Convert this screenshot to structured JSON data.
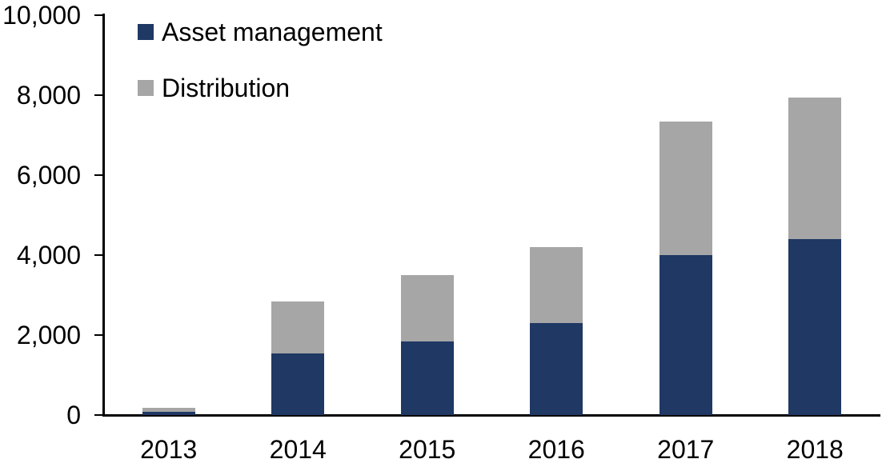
{
  "chart_data": {
    "type": "bar",
    "stacked": true,
    "title": "",
    "xlabel": "",
    "ylabel": "",
    "categories": [
      "2013",
      "2014",
      "2015",
      "2016",
      "2017",
      "2018"
    ],
    "series": [
      {
        "name": "Asset management",
        "color": "#1f3864",
        "values": [
          80,
          1550,
          1850,
          2300,
          4000,
          4400
        ]
      },
      {
        "name": "Distribution",
        "color": "#a6a6a6",
        "values": [
          100,
          1300,
          1650,
          1900,
          3350,
          3550
        ]
      }
    ],
    "totals": [
      180,
      2850,
      3500,
      4200,
      7350,
      7950
    ],
    "ylim": [
      0,
      10000
    ],
    "ytick_interval": 2000,
    "ytick_labels": [
      "0",
      "2,000",
      "4,000",
      "6,000",
      "8,000",
      "10,000"
    ],
    "grid": false,
    "legend_position": "top-left-inside",
    "axis_color": "#000000"
  }
}
